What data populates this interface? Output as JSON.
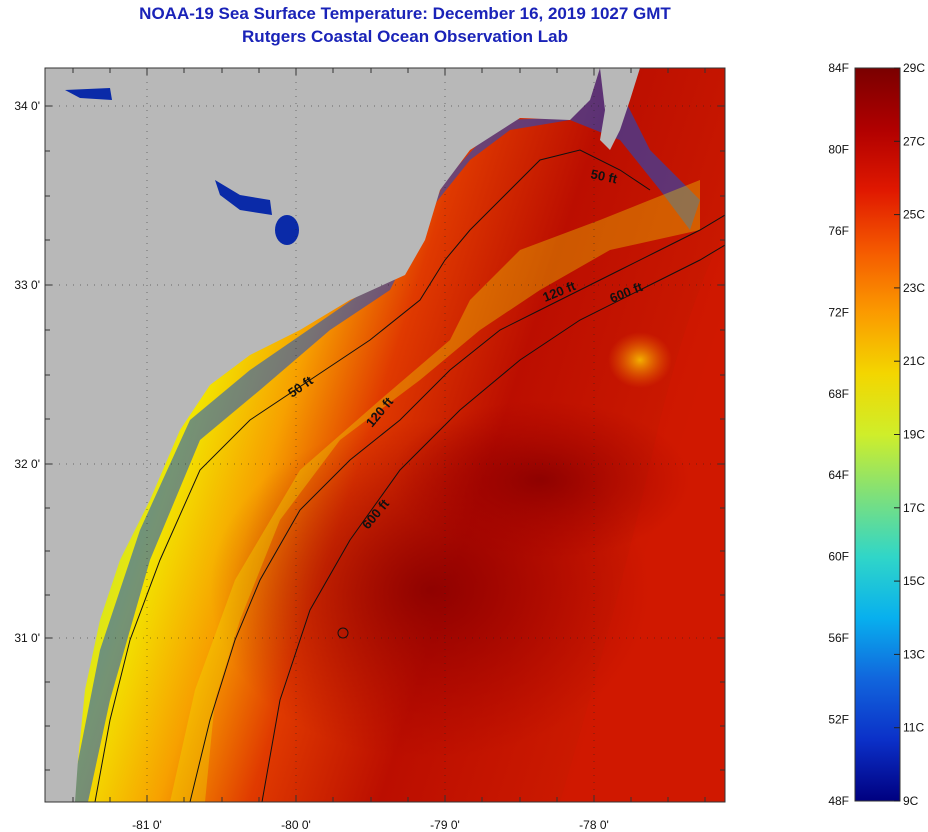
{
  "title": {
    "line1": "NOAA-19 Sea Surface Temperature:  December 16, 2019 1027 GMT",
    "line2": "Rutgers Coastal Ocean Observation Lab"
  },
  "map": {
    "y_ticks": [
      "34 0'",
      "33 0'",
      "32 0'",
      "31 0'"
    ],
    "x_ticks": [
      "-81 0'",
      "-80 0'",
      "-79 0'",
      "-78 0'"
    ],
    "contour_labels": [
      "50 ft",
      "120 ft",
      "600 ft",
      "50 ft",
      "120 ft",
      "600 ft"
    ]
  },
  "colorbar": {
    "fahrenheit": [
      "84F",
      "80F",
      "76F",
      "72F",
      "68F",
      "64F",
      "60F",
      "56F",
      "52F",
      "48F"
    ],
    "celsius": [
      "29C",
      "27C",
      "25C",
      "23C",
      "21C",
      "19C",
      "17C",
      "15C",
      "13C",
      "11C",
      "9C"
    ],
    "colors": [
      "#7a0000",
      "#b00000",
      "#e01800",
      "#f55a00",
      "#fb9a00",
      "#f3d600",
      "#cfee2a",
      "#7fe07a",
      "#30d6c8",
      "#08b0ee",
      "#1166dd",
      "#0b30c8",
      "#000080"
    ]
  }
}
